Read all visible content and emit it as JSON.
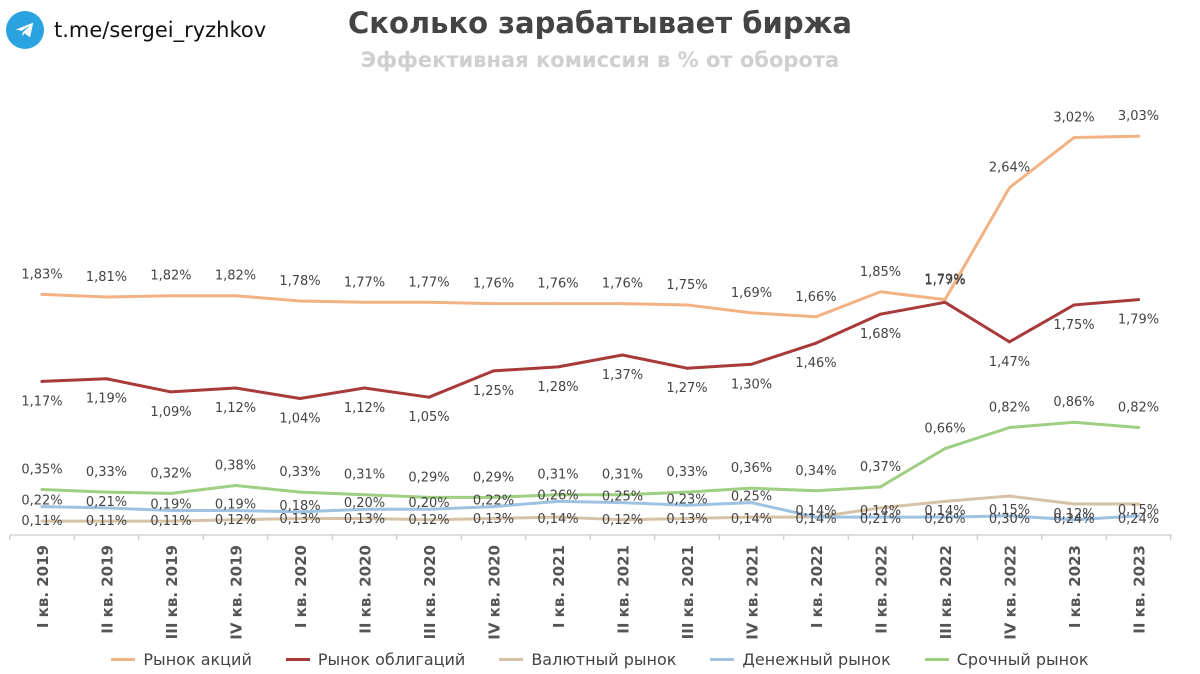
{
  "brand": {
    "handle": "t.me/sergei_ryzhkov",
    "icon": "telegram-icon"
  },
  "header": {
    "title": "Сколько зарабатывает биржа",
    "subtitle": "Эффективная комиссия в % от оборота"
  },
  "chart_data": {
    "type": "line",
    "title": "Сколько зарабатывает биржа",
    "subtitle": "Эффективная комиссия в % от оборота",
    "categories": [
      "I кв. 2019",
      "II кв. 2019",
      "III кв. 2019",
      "IV кв. 2019",
      "I кв. 2020",
      "II кв. 2020",
      "III кв. 2020",
      "IV кв. 2020",
      "I кв. 2021",
      "II кв. 2021",
      "III кв. 2021",
      "IV кв. 2021",
      "I кв. 2022",
      "II кв. 2022",
      "III кв. 2022",
      "IV кв. 2022",
      "I кв. 2023",
      "II кв. 2023"
    ],
    "ylim": [
      0,
      3.2
    ],
    "grid": false,
    "legend_position": "bottom",
    "series": [
      {
        "name": "Рынок акций",
        "color": "#f2b283",
        "values": [
          1.83,
          1.81,
          1.82,
          1.82,
          1.78,
          1.77,
          1.77,
          1.76,
          1.76,
          1.76,
          1.75,
          1.69,
          1.66,
          1.85,
          1.79,
          2.64,
          3.02,
          3.03
        ],
        "labels": [
          "1,83%",
          "1,81%",
          "1,82%",
          "1,82%",
          "1,78%",
          "1,77%",
          "1,77%",
          "1,76%",
          "1,76%",
          "1,76%",
          "1,75%",
          "1,69%",
          "1,66%",
          "1,85%",
          "1,79%",
          "2,64%",
          "3,02%",
          "3,03%"
        ]
      },
      {
        "name": "Рынок облигаций",
        "color": "#a83a3a",
        "values": [
          1.17,
          1.19,
          1.09,
          1.12,
          1.04,
          1.12,
          1.05,
          1.25,
          1.28,
          1.37,
          1.27,
          1.3,
          1.46,
          1.68,
          1.77,
          1.47,
          1.75,
          1.79
        ],
        "labels": [
          "1,17%",
          "1,19%",
          "1,09%",
          "1,12%",
          "1,04%",
          "1,12%",
          "1,05%",
          "1,25%",
          "1,28%",
          "1,37%",
          "1,27%",
          "1,30%",
          "1,46%",
          "1,68%",
          "1,77%",
          "1,47%",
          "1,75%",
          "1,79%"
        ]
      },
      {
        "name": "Валютный рынок",
        "color": "#d6c2a6",
        "values": [
          0.11,
          0.11,
          0.11,
          0.12,
          0.13,
          0.13,
          0.12,
          0.13,
          0.14,
          0.12,
          0.13,
          0.14,
          0.14,
          0.21,
          0.26,
          0.3,
          0.24,
          0.24
        ],
        "labels": [
          "0,11%",
          "0,11%",
          "0,11%",
          "0,12%",
          "0,13%",
          "0,13%",
          "0,12%",
          "0,13%",
          "0,14%",
          "0,12%",
          "0,13%",
          "0,14%",
          "0,14%",
          "0,21%",
          "0,26%",
          "0,30%",
          "0,24%",
          "0,24%"
        ]
      },
      {
        "name": "Денежный рынок",
        "color": "#9ec3e2",
        "values": [
          0.22,
          0.21,
          0.19,
          0.19,
          0.18,
          0.2,
          0.2,
          0.22,
          0.26,
          0.25,
          0.23,
          0.25,
          0.14,
          0.14,
          0.14,
          0.15,
          0.12,
          0.15
        ],
        "labels": [
          "0,22%",
          "0,21%",
          "0,19%",
          "0,19%",
          "0,18%",
          "0,20%",
          "0,20%",
          "0,22%",
          "0,26%",
          "0,25%",
          "0,23%",
          "0,25%",
          "0,14%",
          "0,14%",
          "0,14%",
          "0,15%",
          "0,12%",
          "0,15%"
        ]
      },
      {
        "name": "Срочный рынок",
        "color": "#9fcf82",
        "values": [
          0.35,
          0.33,
          0.32,
          0.38,
          0.33,
          0.31,
          0.29,
          0.29,
          0.31,
          0.31,
          0.33,
          0.36,
          0.34,
          0.37,
          0.66,
          0.82,
          0.86,
          0.82
        ],
        "labels": [
          "0,35%",
          "0,33%",
          "0,32%",
          "0,38%",
          "0,33%",
          "0,31%",
          "0,29%",
          "0,29%",
          "0,31%",
          "0,31%",
          "0,33%",
          "0,36%",
          "0,34%",
          "0,37%",
          "0,66%",
          "0,82%",
          "0,86%",
          "0,82%"
        ]
      }
    ]
  }
}
